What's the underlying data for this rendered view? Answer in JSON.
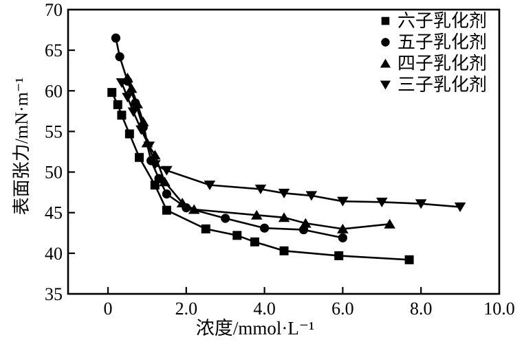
{
  "figure": {
    "background": "#ffffff",
    "ink": "#000000"
  },
  "chart_data": {
    "type": "line",
    "title": "",
    "xlabel": "浓度/mmol·L⁻¹",
    "ylabel": "表面张力/mN·m⁻¹",
    "xlim": [
      -1.02,
      10.0
    ],
    "ylim": [
      35,
      70
    ],
    "grid": false,
    "legend_position": "top-right-inside",
    "x_ticks": [
      {
        "value": 0,
        "label": "0"
      },
      {
        "value": 2,
        "label": "2.0"
      },
      {
        "value": 4,
        "label": "4.0"
      },
      {
        "value": 6,
        "label": "6.0"
      },
      {
        "value": 8,
        "label": "8.0"
      },
      {
        "value": 10,
        "label": "10.0"
      }
    ],
    "y_ticks": [
      {
        "value": 35,
        "label": "35"
      },
      {
        "value": 40,
        "label": "40"
      },
      {
        "value": 45,
        "label": "45"
      },
      {
        "value": 50,
        "label": "50"
      },
      {
        "value": 55,
        "label": "55"
      },
      {
        "value": 60,
        "label": "60"
      },
      {
        "value": 65,
        "label": "65"
      },
      {
        "value": 70,
        "label": "70"
      }
    ],
    "series": [
      {
        "name": "六子乳化剂",
        "marker": "square",
        "points": [
          [
            0.1,
            59.8
          ],
          [
            0.25,
            58.3
          ],
          [
            0.35,
            57.0
          ],
          [
            0.55,
            54.7
          ],
          [
            0.8,
            51.8
          ],
          [
            1.2,
            48.4
          ],
          [
            1.5,
            45.3
          ],
          [
            2.5,
            43.0
          ],
          [
            3.3,
            42.2
          ],
          [
            3.75,
            41.4
          ],
          [
            4.5,
            40.3
          ],
          [
            5.9,
            39.7
          ],
          [
            7.7,
            39.2
          ]
        ]
      },
      {
        "name": "五子乳化剂",
        "marker": "circle",
        "points": [
          [
            0.2,
            66.5
          ],
          [
            0.3,
            64.2
          ],
          [
            0.5,
            61.2
          ],
          [
            0.7,
            58.5
          ],
          [
            0.9,
            55.5
          ],
          [
            1.1,
            51.4
          ],
          [
            1.3,
            49.2
          ],
          [
            1.5,
            47.3
          ],
          [
            2.0,
            45.6
          ],
          [
            3.0,
            44.3
          ],
          [
            4.0,
            43.1
          ],
          [
            5.0,
            42.9
          ],
          [
            6.0,
            41.9
          ]
        ]
      },
      {
        "name": "四子乳化剂",
        "marker": "triangle-up",
        "points": [
          [
            0.5,
            61.6
          ],
          [
            0.6,
            60.3
          ],
          [
            0.75,
            58.4
          ],
          [
            0.9,
            56.2
          ],
          [
            1.0,
            53.6
          ],
          [
            1.2,
            52.1
          ],
          [
            1.45,
            48.8
          ],
          [
            1.9,
            46.2
          ],
          [
            2.2,
            45.4
          ],
          [
            3.8,
            44.7
          ],
          [
            4.5,
            44.4
          ],
          [
            5.05,
            43.7
          ],
          [
            6.0,
            43.0
          ],
          [
            7.2,
            43.6
          ]
        ]
      },
      {
        "name": "三子乳化剂",
        "marker": "triangle-down",
        "points": [
          [
            0.35,
            61.0
          ],
          [
            0.5,
            59.2
          ],
          [
            0.65,
            57.4
          ],
          [
            0.85,
            55.2
          ],
          [
            1.05,
            53.2
          ],
          [
            1.2,
            50.9
          ],
          [
            1.5,
            50.2
          ],
          [
            2.6,
            48.4
          ],
          [
            3.9,
            47.9
          ],
          [
            4.5,
            47.4
          ],
          [
            5.2,
            47.1
          ],
          [
            6.0,
            46.4
          ],
          [
            7.0,
            46.3
          ],
          [
            8.0,
            46.1
          ],
          [
            9.0,
            45.7
          ]
        ]
      }
    ]
  }
}
